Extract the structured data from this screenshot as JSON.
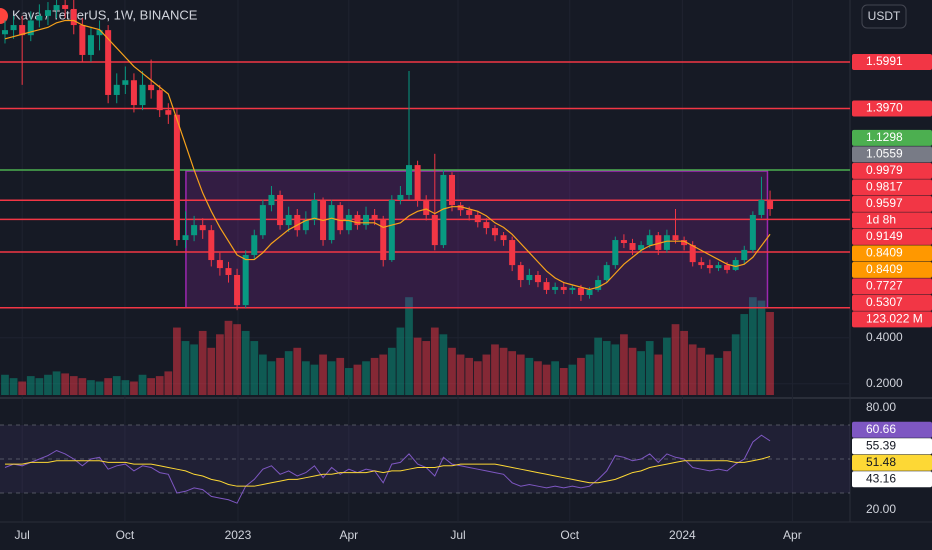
{
  "chart_data": {
    "type": "candlestick",
    "title": "Kava / TetherUS, 1W, BINANCE",
    "currency": "USDT",
    "xlim": [
      -0.58,
      98.3
    ],
    "xticks": [
      {
        "value": 2.0,
        "label": "Jul"
      },
      {
        "value": 13.95,
        "label": "Oct"
      },
      {
        "value": 27.1,
        "label": "2023"
      },
      {
        "value": 40.0,
        "label": "Apr"
      },
      {
        "value": 52.7,
        "label": "Jul"
      },
      {
        "value": 65.7,
        "label": "Oct"
      },
      {
        "value": 78.8,
        "label": "2024"
      },
      {
        "value": 91.6,
        "label": "Apr"
      }
    ],
    "ylim": [
      0.151,
      1.869
    ],
    "yticks": [
      {
        "value": 0.4,
        "label": "0.4000"
      },
      {
        "value": 0.2,
        "label": "0.2000"
      }
    ],
    "up_color": "#089981",
    "down_color": "#f23645",
    "open": [
      1.72,
      1.738,
      1.76,
      1.716,
      1.78,
      1.8,
      1.825,
      1.847,
      1.83,
      1.76,
      1.63,
      1.716,
      1.738,
      1.456,
      1.5,
      1.52,
      1.412,
      1.5,
      1.477,
      1.39,
      1.37,
      0.825,
      0.846,
      0.89,
      0.868,
      0.738,
      0.703,
      0.673,
      0.542,
      0.76,
      0.846,
      0.977,
      1.021,
      0.89,
      0.934,
      0.868,
      0.912,
      0.999,
      0.825,
      0.977,
      0.868,
      0.934,
      0.89,
      0.934,
      0.912,
      0.738,
      0.999,
      1.021,
      1.151,
      0.999,
      0.934,
      0.803,
      1.108,
      0.977,
      0.955,
      0.934,
      0.903,
      0.877,
      0.846,
      0.825,
      0.716,
      0.651,
      0.673,
      0.642,
      0.608,
      0.621,
      0.608,
      0.617,
      0.586,
      0.608,
      0.651,
      0.716,
      0.825,
      0.812,
      0.782,
      0.803,
      0.846,
      0.782,
      0.846,
      0.825,
      0.803,
      0.729,
      0.716,
      0.703,
      0.716,
      0.695,
      0.738,
      0.782,
      0.934,
      0.999
    ],
    "high": [
      1.78,
      1.8,
      1.8,
      1.82,
      1.85,
      1.86,
      1.87,
      1.87,
      1.87,
      1.79,
      1.75,
      1.78,
      1.76,
      1.55,
      1.58,
      1.55,
      1.56,
      1.61,
      1.5,
      1.42,
      1.4,
      0.95,
      0.93,
      0.92,
      0.89,
      0.77,
      0.73,
      0.7,
      0.78,
      0.87,
      1.0,
      1.06,
      1.04,
      0.97,
      0.96,
      0.95,
      1.03,
      1.01,
      1.0,
      0.99,
      0.96,
      0.95,
      0.97,
      0.96,
      0.93,
      1.02,
      1.06,
      1.56,
      1.17,
      1.02,
      1.2,
      1.13,
      1.12,
      0.99,
      0.97,
      0.95,
      0.92,
      0.89,
      0.86,
      0.84,
      0.73,
      0.7,
      0.69,
      0.66,
      0.64,
      0.64,
      0.63,
      0.63,
      0.62,
      0.67,
      0.73,
      0.84,
      0.85,
      0.83,
      0.82,
      0.87,
      0.86,
      0.87,
      0.96,
      0.84,
      0.82,
      0.75,
      0.74,
      0.73,
      0.73,
      0.75,
      0.8,
      0.95,
      1.1,
      1.04
    ],
    "low": [
      1.68,
      1.7,
      1.5,
      1.69,
      1.75,
      1.76,
      1.79,
      1.79,
      1.72,
      1.6,
      1.6,
      1.65,
      1.42,
      1.42,
      1.46,
      1.38,
      1.39,
      1.44,
      1.36,
      1.33,
      0.8,
      0.79,
      0.82,
      0.83,
      0.71,
      0.67,
      0.64,
      0.52,
      0.53,
      0.74,
      0.83,
      0.95,
      0.87,
      0.86,
      0.84,
      0.85,
      0.89,
      0.8,
      0.81,
      0.85,
      0.85,
      0.87,
      0.87,
      0.89,
      0.71,
      0.73,
      0.98,
      1.0,
      0.97,
      0.91,
      0.78,
      0.79,
      0.95,
      0.93,
      0.91,
      0.88,
      0.85,
      0.82,
      0.8,
      0.69,
      0.62,
      0.63,
      0.62,
      0.59,
      0.59,
      0.59,
      0.59,
      0.56,
      0.57,
      0.6,
      0.64,
      0.7,
      0.79,
      0.76,
      0.77,
      0.79,
      0.76,
      0.77,
      0.81,
      0.78,
      0.71,
      0.7,
      0.68,
      0.69,
      0.68,
      0.69,
      0.72,
      0.77,
      0.92,
      0.93
    ],
    "close": [
      1.738,
      1.76,
      1.716,
      1.78,
      1.8,
      1.825,
      1.847,
      1.83,
      1.76,
      1.63,
      1.716,
      1.738,
      1.456,
      1.5,
      1.52,
      1.412,
      1.5,
      1.477,
      1.39,
      1.37,
      0.825,
      0.846,
      0.89,
      0.868,
      0.738,
      0.703,
      0.673,
      0.542,
      0.76,
      0.846,
      0.977,
      1.021,
      0.89,
      0.934,
      0.868,
      0.912,
      0.999,
      0.825,
      0.977,
      0.868,
      0.934,
      0.89,
      0.934,
      0.912,
      0.738,
      0.999,
      1.021,
      1.151,
      0.999,
      0.934,
      0.803,
      1.108,
      0.977,
      0.955,
      0.934,
      0.903,
      0.877,
      0.846,
      0.825,
      0.716,
      0.651,
      0.673,
      0.642,
      0.608,
      0.621,
      0.608,
      0.617,
      0.586,
      0.608,
      0.651,
      0.716,
      0.825,
      0.812,
      0.782,
      0.803,
      0.846,
      0.782,
      0.846,
      0.825,
      0.803,
      0.729,
      0.716,
      0.703,
      0.716,
      0.695,
      0.738,
      0.782,
      0.934,
      0.999,
      0.9597
    ],
    "ma": {
      "color": "#f7a21b",
      "values": [
        1.7,
        1.71,
        1.72,
        1.73,
        1.74,
        1.75,
        1.77,
        1.78,
        1.78,
        1.76,
        1.75,
        1.74,
        1.7,
        1.66,
        1.62,
        1.58,
        1.55,
        1.52,
        1.49,
        1.46,
        1.35,
        1.24,
        1.13,
        1.03,
        0.95,
        0.88,
        0.82,
        0.76,
        0.74,
        0.74,
        0.77,
        0.81,
        0.84,
        0.87,
        0.89,
        0.91,
        0.92,
        0.91,
        0.92,
        0.91,
        0.91,
        0.9,
        0.9,
        0.9,
        0.88,
        0.89,
        0.9,
        0.93,
        0.95,
        0.96,
        0.94,
        0.96,
        0.97,
        0.97,
        0.96,
        0.95,
        0.93,
        0.9,
        0.88,
        0.85,
        0.81,
        0.77,
        0.73,
        0.69,
        0.66,
        0.64,
        0.63,
        0.62,
        0.61,
        0.62,
        0.64,
        0.68,
        0.72,
        0.75,
        0.78,
        0.8,
        0.81,
        0.82,
        0.82,
        0.82,
        0.8,
        0.78,
        0.76,
        0.74,
        0.72,
        0.71,
        0.72,
        0.75,
        0.8,
        0.85
      ]
    },
    "levels": [
      {
        "value": 1.5991,
        "color": "#f23645"
      },
      {
        "value": 1.397,
        "color": "#f23645"
      },
      {
        "value": 1.1298,
        "color": "#4caf50"
      },
      {
        "value": 0.9979,
        "color": "#f23645"
      },
      {
        "value": 0.9149,
        "color": "#f23645"
      },
      {
        "value": 0.7727,
        "color": "#f23645"
      },
      {
        "value": 0.5307,
        "color": "#f23645"
      }
    ],
    "box": {
      "x": [
        21.05,
        88.7
      ],
      "y": [
        1.125,
        0.5307
      ],
      "color": "#9c27b0"
    },
    "price_labels": [
      {
        "value": 1.5991,
        "label": "1.5991",
        "color": "#f23645"
      },
      {
        "value": 1.397,
        "label": "1.3970",
        "color": "#f23645"
      },
      {
        "value": 1.1298,
        "label": "1.1298",
        "color": "#4caf50"
      },
      {
        "value": 1.0559,
        "label": "1.0559",
        "color": "#787b86"
      },
      {
        "value": 0.9979,
        "label": "0.9979",
        "color": "#f23645"
      },
      {
        "value": 0.9817,
        "label": "0.9817",
        "color": "#f23645"
      },
      {
        "value": 0.9597,
        "label": "0.9597",
        "color": "#f23645"
      },
      {
        "value": 0.9149,
        "label": "0.9149",
        "color": "#f23645"
      },
      {
        "value": 0.8409,
        "label": "0.8409",
        "color": "#ff9800"
      },
      {
        "value": 0.8409,
        "label": "0.8409",
        "color": "#ff9800"
      },
      {
        "value": 0.7727,
        "label": "0.7727",
        "color": "#f23645"
      },
      {
        "value": 0.5307,
        "label": "0.5307",
        "color": "#f23645"
      }
    ],
    "countdown": "1d 8h",
    "volume": {
      "ylim": [
        0,
        145.3
      ],
      "label": {
        "value": 123.022,
        "label": "123.022 M"
      },
      "values": [
        30,
        25,
        20,
        28,
        25,
        30,
        35,
        32,
        28,
        25,
        22,
        20,
        25,
        28,
        22,
        20,
        30,
        25,
        28,
        35,
        100,
        80,
        75,
        95,
        70,
        90,
        110,
        105,
        95,
        80,
        60,
        50,
        55,
        65,
        70,
        50,
        45,
        60,
        50,
        55,
        40,
        45,
        50,
        55,
        60,
        70,
        100,
        145,
        85,
        80,
        100,
        90,
        70,
        60,
        55,
        50,
        60,
        75,
        70,
        65,
        60,
        55,
        50,
        45,
        50,
        40,
        45,
        55,
        60,
        85,
        80,
        75,
        90,
        70,
        65,
        80,
        60,
        85,
        105,
        95,
        75,
        70,
        60,
        55,
        65,
        90,
        120,
        145,
        140,
        123.022
      ]
    },
    "rsi": {
      "ylim": [
        14.1,
        85.9
      ],
      "yticks": [
        {
          "value": 80,
          "label": "80.00"
        },
        {
          "value": 20,
          "label": "20.00"
        }
      ],
      "levels": [
        70,
        50,
        30
      ],
      "series": [
        {
          "color": "#7e57c2",
          "values": [
            45,
            47,
            46,
            48,
            50,
            52,
            55,
            53,
            50,
            46,
            50,
            51,
            44,
            46,
            47,
            43,
            46,
            45,
            42,
            41,
            30,
            31,
            33,
            32,
            28,
            27,
            26,
            24,
            34,
            38,
            44,
            46,
            41,
            43,
            40,
            42,
            46,
            39,
            45,
            41,
            44,
            42,
            44,
            43,
            36,
            47,
            48,
            53,
            47,
            45,
            40,
            51,
            47,
            46,
            45,
            44,
            43,
            42,
            41,
            36,
            34,
            35,
            34,
            33,
            34,
            33,
            34,
            33,
            34,
            38,
            43,
            52,
            51,
            49,
            50,
            53,
            48,
            53,
            51,
            50,
            45,
            44,
            43,
            44,
            43,
            47,
            50,
            60,
            64,
            60.66
          ]
        },
        {
          "color": "#fdd835",
          "values": [
            47,
            47,
            47,
            48,
            48,
            48,
            49,
            49,
            49,
            49,
            49,
            49,
            48,
            48,
            48,
            47,
            47,
            47,
            46,
            45,
            44,
            43,
            41,
            40,
            38,
            37,
            35,
            34,
            34,
            34,
            35,
            36,
            37,
            38,
            38,
            39,
            40,
            41,
            41,
            42,
            42,
            42,
            42,
            43,
            42,
            43,
            43,
            44,
            45,
            45,
            45,
            46,
            46,
            47,
            47,
            47,
            47,
            47,
            46,
            45,
            44,
            43,
            42,
            41,
            40,
            39,
            38,
            37,
            36,
            36,
            37,
            38,
            40,
            42,
            43,
            45,
            46,
            47,
            48,
            49,
            49,
            49,
            49,
            49,
            49,
            48,
            48,
            49,
            50,
            51.48
          ]
        }
      ],
      "labels": [
        {
          "value": 60.66,
          "label": "60.66",
          "color": "#7e57c2"
        },
        {
          "value": 55.39,
          "label": "55.39",
          "color": "#ffffff"
        },
        {
          "value": 51.48,
          "label": "51.48",
          "color": "#fdd835"
        },
        {
          "value": 43.16,
          "label": "43.16",
          "color": "#ffffff"
        }
      ]
    }
  }
}
